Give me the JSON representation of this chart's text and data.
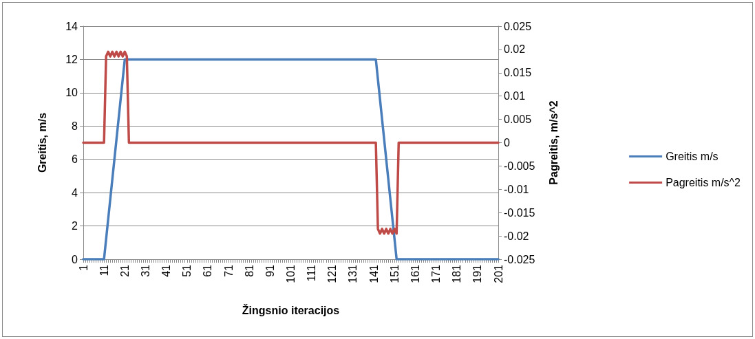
{
  "chart_data": {
    "type": "line",
    "xlabel": "Žingsnio iteracijos",
    "ylabel": "Greitis, m/s",
    "y2label": "Pagreitis, m/s^2",
    "categories": [
      "1",
      null,
      null,
      null,
      null,
      null,
      null,
      null,
      null,
      null,
      "11",
      null,
      null,
      null,
      null,
      null,
      null,
      null,
      null,
      null,
      "21",
      null,
      null,
      null,
      null,
      null,
      null,
      null,
      null,
      null,
      "31",
      null,
      null,
      null,
      null,
      null,
      null,
      null,
      null,
      null,
      "41",
      null,
      null,
      null,
      null,
      null,
      null,
      null,
      null,
      null,
      "51",
      null,
      null,
      null,
      null,
      null,
      null,
      null,
      null,
      null,
      "61",
      null,
      null,
      null,
      null,
      null,
      null,
      null,
      null,
      null,
      "71",
      null,
      null,
      null,
      null,
      null,
      null,
      null,
      null,
      null,
      "81",
      null,
      null,
      null,
      null,
      null,
      null,
      null,
      null,
      null,
      "91",
      null,
      null,
      null,
      null,
      null,
      null,
      null,
      null,
      null,
      "101",
      null,
      null,
      null,
      null,
      null,
      null,
      null,
      null,
      null,
      "111",
      null,
      null,
      null,
      null,
      null,
      null,
      null,
      null,
      null,
      "121",
      null,
      null,
      null,
      null,
      null,
      null,
      null,
      null,
      null,
      "131",
      null,
      null,
      null,
      null,
      null,
      null,
      null,
      null,
      null,
      "141",
      null,
      null,
      null,
      null,
      null,
      null,
      null,
      null,
      null,
      "151",
      null,
      null,
      null,
      null,
      null,
      null,
      null,
      null,
      null,
      "161",
      null,
      null,
      null,
      null,
      null,
      null,
      null,
      null,
      null,
      "171",
      null,
      null,
      null,
      null,
      null,
      null,
      null,
      null,
      null,
      "181",
      null,
      null,
      null,
      null,
      null,
      null,
      null,
      null,
      null,
      "191",
      null,
      null,
      null,
      null,
      null,
      null,
      null,
      null,
      null,
      "201"
    ],
    "series": [
      {
        "name": "Greitis m/s",
        "color": "#4a7ebb",
        "values": [
          0,
          0,
          0,
          0,
          0,
          0,
          0,
          0,
          0,
          0,
          0,
          1.2,
          2.4,
          3.6,
          4.8,
          6,
          7.2,
          8.4,
          9.6,
          10.8,
          12,
          12,
          12,
          12,
          12,
          12,
          12,
          12,
          12,
          12,
          12,
          12,
          12,
          12,
          12,
          12,
          12,
          12,
          12,
          12,
          12,
          12,
          12,
          12,
          12,
          12,
          12,
          12,
          12,
          12,
          12,
          12,
          12,
          12,
          12,
          12,
          12,
          12,
          12,
          12,
          12,
          12,
          12,
          12,
          12,
          12,
          12,
          12,
          12,
          12,
          12,
          12,
          12,
          12,
          12,
          12,
          12,
          12,
          12,
          12,
          12,
          12,
          12,
          12,
          12,
          12,
          12,
          12,
          12,
          12,
          12,
          12,
          12,
          12,
          12,
          12,
          12,
          12,
          12,
          12,
          12,
          12,
          12,
          12,
          12,
          12,
          12,
          12,
          12,
          12,
          12,
          12,
          12,
          12,
          12,
          12,
          12,
          12,
          12,
          12,
          12,
          12,
          12,
          12,
          12,
          12,
          12,
          12,
          12,
          12,
          12,
          12,
          12,
          12,
          12,
          12,
          12,
          12,
          12,
          12,
          12,
          12,
          10.8,
          9.6,
          8.4,
          7.2,
          6,
          4.8,
          3.6,
          2.4,
          1.2,
          0,
          0,
          0,
          0,
          0,
          0,
          0,
          0,
          0,
          0,
          0,
          0,
          0,
          0,
          0,
          0,
          0,
          0,
          0,
          0,
          0,
          0,
          0,
          0,
          0,
          0,
          0,
          0,
          0,
          0,
          0,
          0,
          0,
          0,
          0,
          0,
          0,
          0,
          0,
          0,
          0,
          0,
          0,
          0,
          0,
          0,
          0,
          0,
          0,
          0
        ]
      },
      {
        "name": "Pagreitis m/s^2",
        "color": "#be4b48",
        "axis": "y2",
        "values": [
          0,
          0,
          0,
          0,
          0,
          0,
          0,
          0,
          0,
          0,
          0,
          0.0185,
          0.0195,
          0.0185,
          0.0195,
          0.0185,
          0.0195,
          0.0185,
          0.0195,
          0.0185,
          0.0195,
          0.0185,
          0,
          0,
          0,
          0,
          0,
          0,
          0,
          0,
          0,
          0,
          0,
          0,
          0,
          0,
          0,
          0,
          0,
          0,
          0,
          0,
          0,
          0,
          0,
          0,
          0,
          0,
          0,
          0,
          0,
          0,
          0,
          0,
          0,
          0,
          0,
          0,
          0,
          0,
          0,
          0,
          0,
          0,
          0,
          0,
          0,
          0,
          0,
          0,
          0,
          0,
          0,
          0,
          0,
          0,
          0,
          0,
          0,
          0,
          0,
          0,
          0,
          0,
          0,
          0,
          0,
          0,
          0,
          0,
          0,
          0,
          0,
          0,
          0,
          0,
          0,
          0,
          0,
          0,
          0,
          0,
          0,
          0,
          0,
          0,
          0,
          0,
          0,
          0,
          0,
          0,
          0,
          0,
          0,
          0,
          0,
          0,
          0,
          0,
          0,
          0,
          0,
          0,
          0,
          0,
          0,
          0,
          0,
          0,
          0,
          0,
          0,
          0,
          0,
          0,
          0,
          0,
          0,
          0,
          0,
          0,
          -0.0185,
          -0.0195,
          -0.0185,
          -0.0195,
          -0.0185,
          -0.0195,
          -0.0185,
          -0.0195,
          -0.0185,
          -0.0195,
          0,
          0,
          0,
          0,
          0,
          0,
          0,
          0,
          0,
          0,
          0,
          0,
          0,
          0,
          0,
          0,
          0,
          0,
          0,
          0,
          0,
          0,
          0,
          0,
          0,
          0,
          0,
          0,
          0,
          0,
          0,
          0,
          0,
          0,
          0,
          0,
          0,
          0,
          0,
          0,
          0,
          0,
          0,
          0,
          0,
          0,
          0,
          0,
          0
        ]
      }
    ],
    "ylim": [
      0,
      14
    ],
    "yticks": [
      0,
      2,
      4,
      6,
      8,
      10,
      12,
      14
    ],
    "y2lim": [
      -0.025,
      0.025
    ],
    "y2ticks": [
      -0.025,
      -0.02,
      -0.015,
      -0.01,
      -0.005,
      0,
      0.005,
      0.01,
      0.015,
      0.02,
      0.025
    ],
    "grid": "y",
    "legend": "right",
    "marker": "none",
    "line_style": "solid"
  }
}
